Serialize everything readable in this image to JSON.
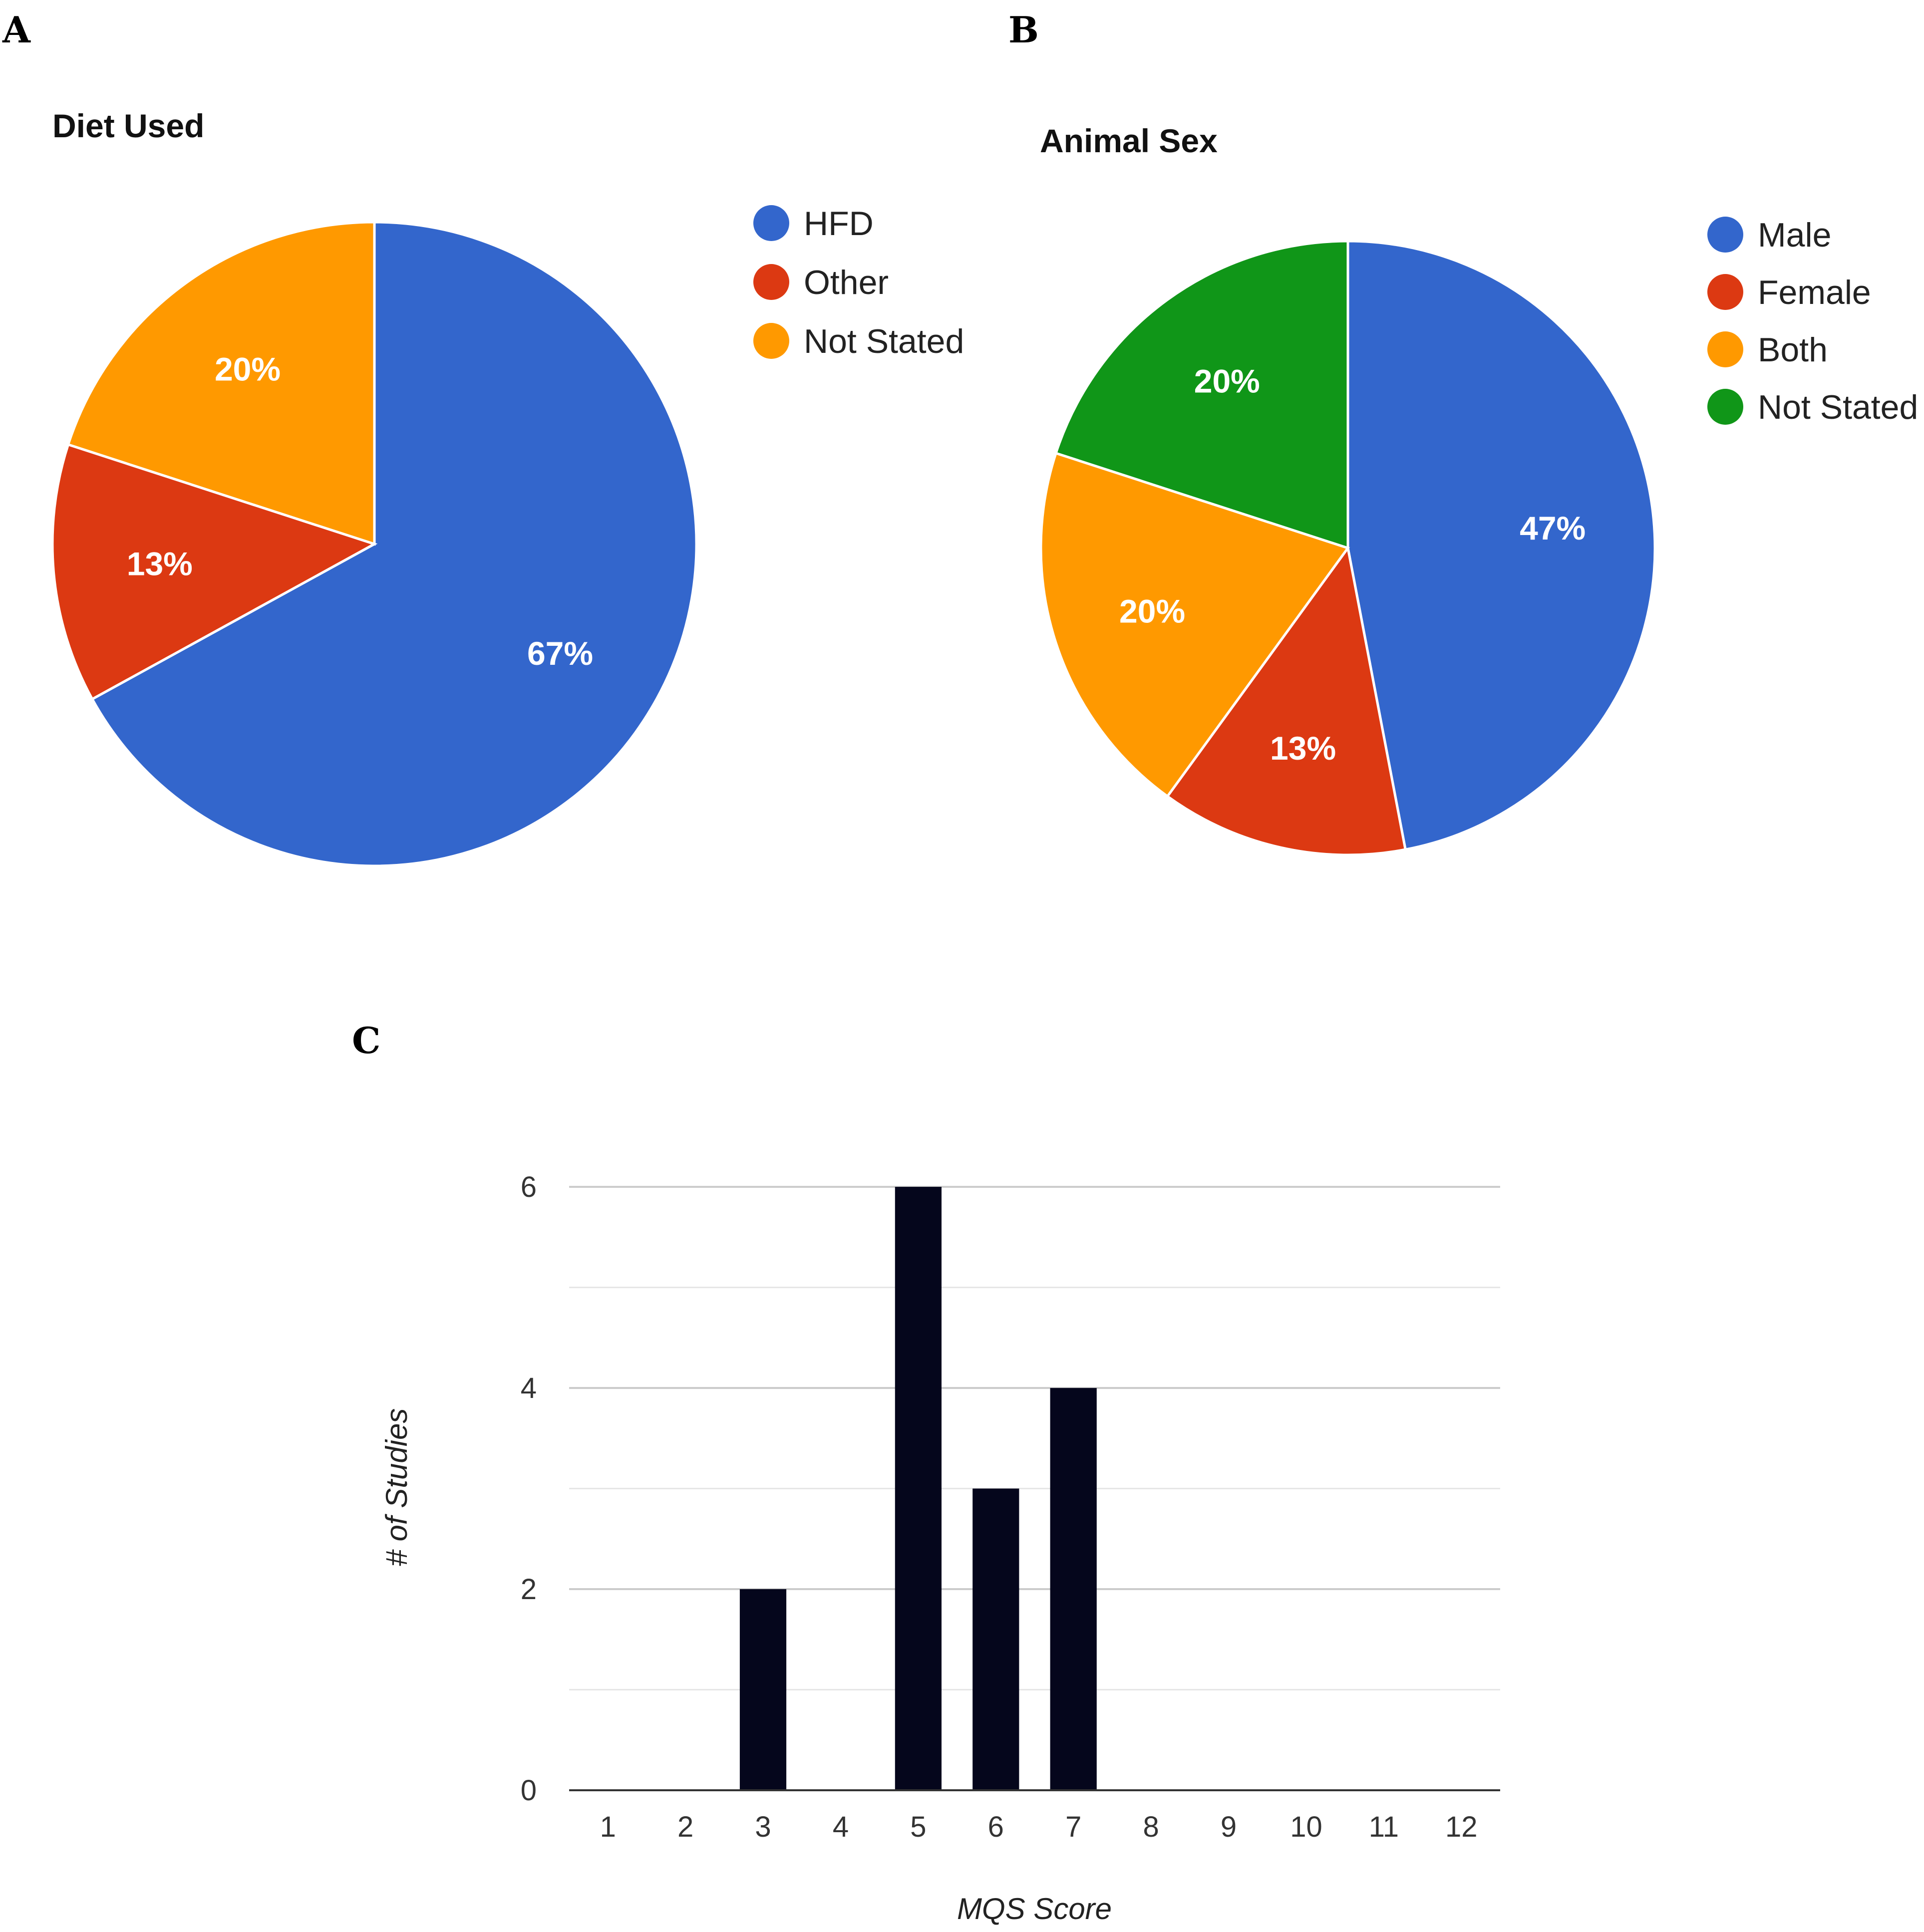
{
  "panels": {
    "a": "A",
    "b": "B",
    "c": "C"
  },
  "chart_data": [
    {
      "type": "pie",
      "title": "Diet Used",
      "labels": [
        "HFD",
        "Other",
        "Not Stated"
      ],
      "values": [
        67,
        13,
        20
      ],
      "value_labels": [
        "67%",
        "13%",
        "20%"
      ],
      "colors": [
        "#3366cc",
        "#dc3912",
        "#ff9900"
      ],
      "legend": "right"
    },
    {
      "type": "pie",
      "title": "Animal Sex",
      "labels": [
        "Male",
        "Female",
        "Both",
        "Not Stated"
      ],
      "values": [
        47,
        13,
        20,
        20
      ],
      "value_labels": [
        "47%",
        "13%",
        "20%",
        "20%"
      ],
      "colors": [
        "#3366cc",
        "#dc3912",
        "#ff9900",
        "#109618"
      ],
      "legend": "right"
    },
    {
      "type": "bar",
      "title": "",
      "categories": [
        "1",
        "2",
        "3",
        "4",
        "5",
        "6",
        "7",
        "8",
        "9",
        "10",
        "11",
        "12"
      ],
      "values": [
        0,
        0,
        2,
        0,
        6,
        3,
        4,
        0,
        0,
        0,
        0,
        0
      ],
      "xlabel": "MQS Score",
      "ylabel": "# of Studies",
      "ylim": [
        0,
        6
      ],
      "yticks": [
        0,
        2,
        4,
        6
      ],
      "grid": true,
      "bar_color": "#05061c"
    }
  ]
}
